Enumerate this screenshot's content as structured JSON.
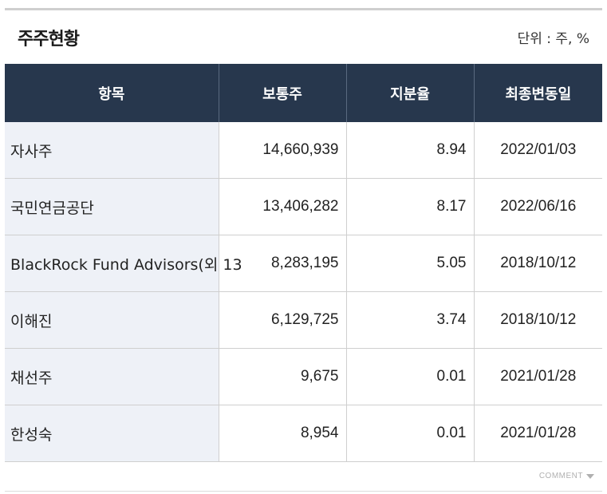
{
  "widget": {
    "title": "주주현황",
    "unit_label": "단위 : 주, %"
  },
  "table": {
    "headers": [
      "항목",
      "보통주",
      "지분율",
      "최종변동일"
    ],
    "rows": [
      {
        "name": "자사주",
        "shares": "14,660,939",
        "ratio": "8.94",
        "date": "2022/01/03"
      },
      {
        "name": "국민연금공단",
        "shares": "13,406,282",
        "ratio": "8.17",
        "date": "2022/06/16"
      },
      {
        "name": "BlackRock Fund Advisors(외 13",
        "shares": "8,283,195",
        "ratio": "5.05",
        "date": "2018/10/12"
      },
      {
        "name": "이해진",
        "shares": "6,129,725",
        "ratio": "3.74",
        "date": "2018/10/12"
      },
      {
        "name": "채선주",
        "shares": "9,675",
        "ratio": "0.01",
        "date": "2021/01/28"
      },
      {
        "name": "한성숙",
        "shares": "8,954",
        "ratio": "0.01",
        "date": "2021/01/28"
      }
    ]
  },
  "footer": {
    "comment_label": "COMMENT",
    "comment_icon": "chevron-down-icon"
  }
}
